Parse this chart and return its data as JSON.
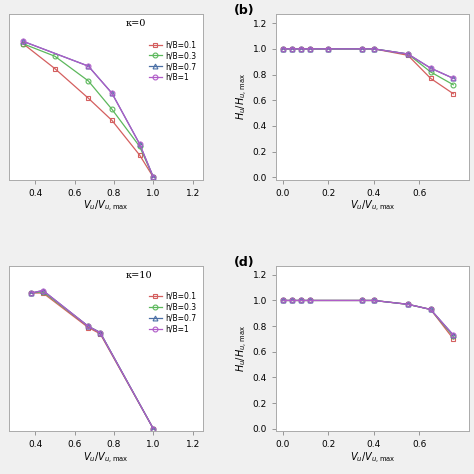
{
  "panels": [
    {
      "label": "",
      "kappa": "κ=0",
      "xlabel": "$V_u/V_{u,\\mathrm{max}}$",
      "ylabel": "",
      "xlim": [
        0.27,
        1.25
      ],
      "ylim": [
        -0.02,
        1.32
      ],
      "xticks": [
        0.4,
        0.6,
        0.8,
        1.0,
        1.2
      ],
      "yticks": [],
      "show_legend": true,
      "series": [
        {
          "label": "h/B=0.1",
          "color": "#d45f5f",
          "marker": "s",
          "x": [
            0.34,
            0.5,
            0.67,
            0.79,
            0.93,
            1.0
          ],
          "y": [
            1.08,
            0.88,
            0.64,
            0.46,
            0.18,
            0.0
          ]
        },
        {
          "label": "h/B=0.3",
          "color": "#5cb85c",
          "marker": "o",
          "x": [
            0.34,
            0.5,
            0.67,
            0.79,
            0.93,
            1.0
          ],
          "y": [
            1.08,
            0.98,
            0.78,
            0.55,
            0.25,
            0.0
          ]
        },
        {
          "label": "h/B=0.7",
          "color": "#4a6fa5",
          "marker": "^",
          "x": [
            0.34,
            0.67,
            0.79,
            0.93,
            1.0
          ],
          "y": [
            1.1,
            0.9,
            0.68,
            0.27,
            0.0
          ]
        },
        {
          "label": "h/B=1",
          "color": "#b05cc8",
          "marker": "o",
          "x": [
            0.34,
            0.67,
            0.79,
            0.93,
            1.0
          ],
          "y": [
            1.1,
            0.9,
            0.68,
            0.27,
            0.0
          ]
        }
      ]
    },
    {
      "label": "(b)",
      "kappa": "",
      "xlabel": "$V_u/V_{u,\\mathrm{max}}$",
      "ylabel": "$H_u/H_{u,\\mathrm{max}}$",
      "xlim": [
        -0.03,
        0.82
      ],
      "ylim": [
        -0.02,
        1.27
      ],
      "xticks": [
        0.0,
        0.2,
        0.4,
        0.6
      ],
      "yticks": [
        0.0,
        0.2,
        0.4,
        0.6,
        0.8,
        1.0,
        1.2
      ],
      "show_legend": false,
      "series": [
        {
          "label": "h/B=0.1",
          "color": "#d45f5f",
          "marker": "s",
          "x": [
            0.0,
            0.04,
            0.08,
            0.12,
            0.2,
            0.35,
            0.4,
            0.55,
            0.65,
            0.75
          ],
          "y": [
            1.0,
            1.0,
            1.0,
            1.0,
            1.0,
            1.0,
            1.0,
            0.95,
            0.77,
            0.65
          ]
        },
        {
          "label": "h/B=0.3",
          "color": "#5cb85c",
          "marker": "o",
          "x": [
            0.0,
            0.04,
            0.08,
            0.12,
            0.2,
            0.35,
            0.4,
            0.55,
            0.65,
            0.75
          ],
          "y": [
            1.0,
            1.0,
            1.0,
            1.0,
            1.0,
            1.0,
            1.0,
            0.96,
            0.82,
            0.72
          ]
        },
        {
          "label": "h/B=0.7",
          "color": "#4a6fa5",
          "marker": "^",
          "x": [
            0.0,
            0.04,
            0.08,
            0.12,
            0.2,
            0.35,
            0.4,
            0.55,
            0.65,
            0.75
          ],
          "y": [
            1.0,
            1.0,
            1.0,
            1.0,
            1.0,
            1.0,
            1.0,
            0.96,
            0.85,
            0.77
          ]
        },
        {
          "label": "h/B=1",
          "color": "#b05cc8",
          "marker": "o",
          "x": [
            0.0,
            0.04,
            0.08,
            0.12,
            0.2,
            0.35,
            0.4,
            0.55,
            0.65,
            0.75
          ],
          "y": [
            1.0,
            1.0,
            1.0,
            1.0,
            1.0,
            1.0,
            1.0,
            0.96,
            0.85,
            0.77
          ]
        }
      ]
    },
    {
      "label": "",
      "kappa": "κ=10",
      "xlabel": "$V_u/V_{u,\\mathrm{max}}$",
      "ylabel": "",
      "xlim": [
        0.27,
        1.25
      ],
      "ylim": [
        -0.02,
        1.32
      ],
      "xticks": [
        0.4,
        0.6,
        0.8,
        1.0,
        1.2
      ],
      "yticks": [],
      "show_legend": true,
      "series": [
        {
          "label": "h/B=0.1",
          "color": "#d45f5f",
          "marker": "s",
          "x": [
            0.38,
            0.44,
            0.67,
            0.73,
            1.0
          ],
          "y": [
            1.1,
            1.1,
            0.82,
            0.77,
            0.0
          ]
        },
        {
          "label": "h/B=0.3",
          "color": "#5cb85c",
          "marker": "o",
          "x": [
            0.38,
            0.44,
            0.67,
            0.73,
            1.0
          ],
          "y": [
            1.1,
            1.11,
            0.83,
            0.78,
            0.0
          ]
        },
        {
          "label": "h/B=0.7",
          "color": "#4a6fa5",
          "marker": "^",
          "x": [
            0.38,
            0.44,
            0.67,
            0.73,
            1.0
          ],
          "y": [
            1.1,
            1.12,
            0.83,
            0.78,
            0.0
          ]
        },
        {
          "label": "h/B=1",
          "color": "#b05cc8",
          "marker": "o",
          "x": [
            0.38,
            0.44,
            0.67,
            0.73,
            1.0
          ],
          "y": [
            1.1,
            1.12,
            0.83,
            0.78,
            0.0
          ]
        }
      ]
    },
    {
      "label": "(d)",
      "kappa": "",
      "xlabel": "$V_u/V_{u,\\mathrm{max}}$",
      "ylabel": "$H_u/H_{u,\\mathrm{max}}$",
      "xlim": [
        -0.03,
        0.82
      ],
      "ylim": [
        -0.02,
        1.27
      ],
      "xticks": [
        0.0,
        0.2,
        0.4,
        0.6
      ],
      "yticks": [
        0.0,
        0.2,
        0.4,
        0.6,
        0.8,
        1.0,
        1.2
      ],
      "show_legend": false,
      "series": [
        {
          "label": "h/B=0.1",
          "color": "#d45f5f",
          "marker": "s",
          "x": [
            0.0,
            0.04,
            0.08,
            0.12,
            0.35,
            0.4,
            0.55,
            0.65,
            0.75
          ],
          "y": [
            1.0,
            1.0,
            1.0,
            1.0,
            1.0,
            1.0,
            0.97,
            0.93,
            0.7
          ]
        },
        {
          "label": "h/B=0.3",
          "color": "#5cb85c",
          "marker": "o",
          "x": [
            0.0,
            0.04,
            0.08,
            0.12,
            0.35,
            0.4,
            0.55,
            0.65,
            0.75
          ],
          "y": [
            1.0,
            1.0,
            1.0,
            1.0,
            1.0,
            1.0,
            0.97,
            0.93,
            0.72
          ]
        },
        {
          "label": "h/B=0.7",
          "color": "#4a6fa5",
          "marker": "^",
          "x": [
            0.0,
            0.04,
            0.08,
            0.12,
            0.35,
            0.4,
            0.55,
            0.65,
            0.75
          ],
          "y": [
            1.0,
            1.0,
            1.0,
            1.0,
            1.0,
            1.0,
            0.97,
            0.93,
            0.73
          ]
        },
        {
          "label": "h/B=1",
          "color": "#b05cc8",
          "marker": "o",
          "x": [
            0.0,
            0.04,
            0.08,
            0.12,
            0.35,
            0.4,
            0.55,
            0.65,
            0.75
          ],
          "y": [
            1.0,
            1.0,
            1.0,
            1.0,
            1.0,
            1.0,
            0.97,
            0.93,
            0.73
          ]
        }
      ]
    }
  ],
  "bg_color": "#ffffff",
  "figure_bg": "#f0f0f0"
}
